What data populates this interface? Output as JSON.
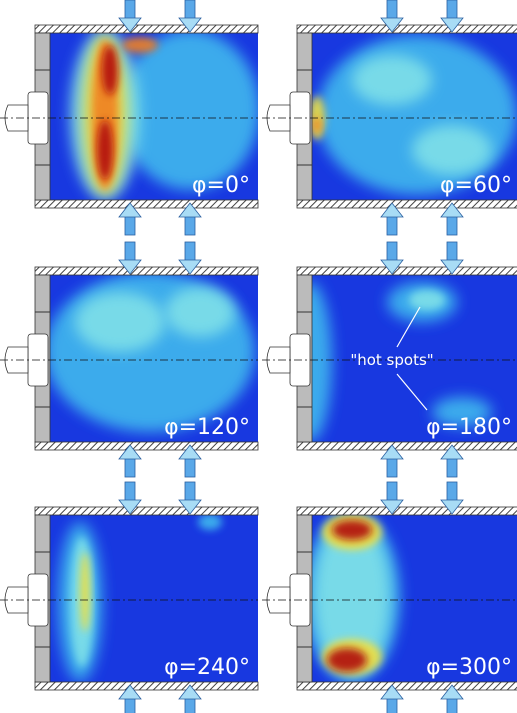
{
  "panels": [
    {
      "label": "φ=0°"
    },
    {
      "label": "φ=60°"
    },
    {
      "label": "φ=120°"
    },
    {
      "label": "φ=180°"
    },
    {
      "label": "φ=240°"
    },
    {
      "label": "φ=300°"
    }
  ],
  "annotation": "\"hot spots\""
}
